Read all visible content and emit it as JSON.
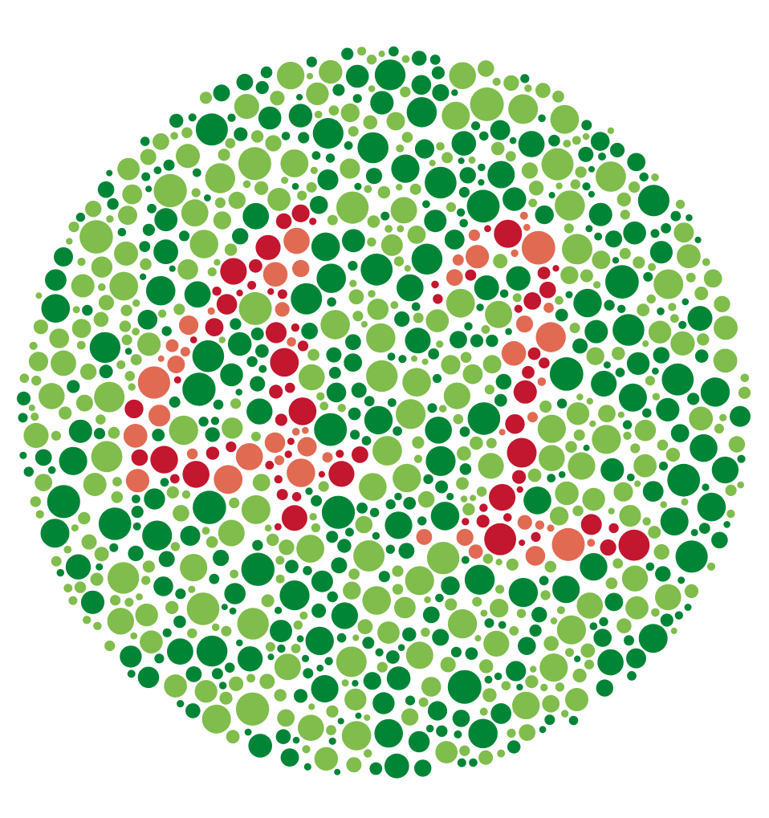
{
  "plate": {
    "kind": "ishihara-color-vision-test-plate",
    "figure_digits": "42",
    "colors": {
      "background": "#ffffff",
      "green_dark": "#008537",
      "green_light": "#80bd4c",
      "red_dark": "#c3162f",
      "red_light": "#e16a53"
    }
  }
}
